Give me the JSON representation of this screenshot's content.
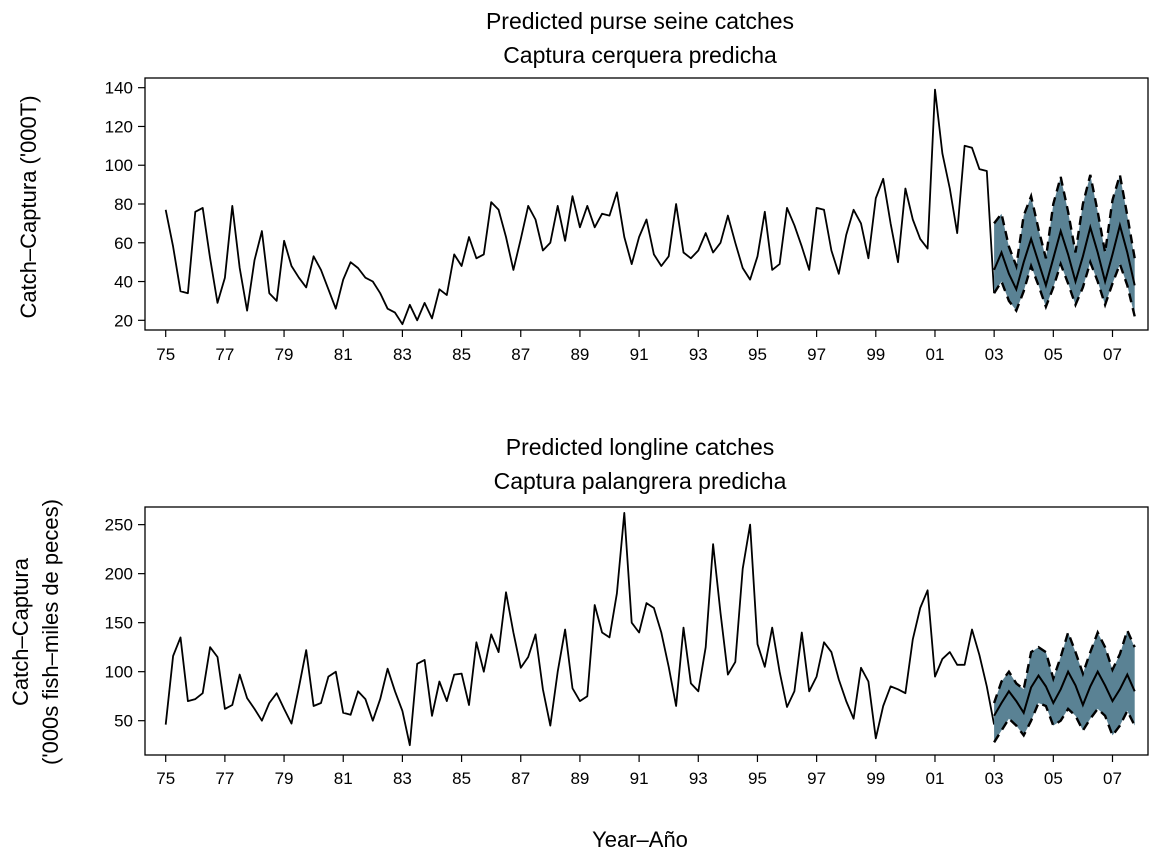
{
  "figure": {
    "xlabel": "Year–Año"
  },
  "chart_data": [
    {
      "type": "line",
      "title": "Predicted purse seine catches",
      "subtitle": "Captura cerquera predicha",
      "ylabel": "Catch–Captura ('000T)",
      "ylabel_line2": "",
      "xlim": [
        1974.3,
        2008.2
      ],
      "ylim": [
        15,
        145
      ],
      "xticks": [
        1975,
        1977,
        1979,
        1981,
        1983,
        1985,
        1987,
        1989,
        1991,
        1993,
        1995,
        1997,
        1999,
        2001,
        2003,
        2005,
        2007
      ],
      "xtick_labels": [
        "75",
        "77",
        "79",
        "81",
        "83",
        "85",
        "87",
        "89",
        "91",
        "93",
        "95",
        "97",
        "99",
        "01",
        "03",
        "05",
        "07"
      ],
      "yticks": [
        20,
        40,
        60,
        80,
        100,
        120,
        140
      ],
      "ytick_labels": [
        "20",
        "40",
        "60",
        "80",
        "100",
        "120",
        "140"
      ],
      "grid": false,
      "colors": {
        "line": "#000000",
        "band": "#5a8294",
        "band_edge": "#000000"
      },
      "series": [
        {
          "role": "observed",
          "x": [
            1975.0,
            1975.25,
            1975.5,
            1975.75,
            1976.0,
            1976.25,
            1976.5,
            1976.75,
            1977.0,
            1977.25,
            1977.5,
            1977.75,
            1978.0,
            1978.25,
            1978.5,
            1978.75,
            1979.0,
            1979.25,
            1979.5,
            1979.75,
            1980.0,
            1980.25,
            1980.5,
            1980.75,
            1981.0,
            1981.25,
            1981.5,
            1981.75,
            1982.0,
            1982.25,
            1982.5,
            1982.75,
            1983.0,
            1983.25,
            1983.5,
            1983.75,
            1984.0,
            1984.25,
            1984.5,
            1984.75,
            1985.0,
            1985.25,
            1985.5,
            1985.75,
            1986.0,
            1986.25,
            1986.5,
            1986.75,
            1987.0,
            1987.25,
            1987.5,
            1987.75,
            1988.0,
            1988.25,
            1988.5,
            1988.75,
            1989.0,
            1989.25,
            1989.5,
            1989.75,
            1990.0,
            1990.25,
            1990.5,
            1990.75,
            1991.0,
            1991.25,
            1991.5,
            1991.75,
            1992.0,
            1992.25,
            1992.5,
            1992.75,
            1993.0,
            1993.25,
            1993.5,
            1993.75,
            1994.0,
            1994.25,
            1994.5,
            1994.75,
            1995.0,
            1995.25,
            1995.5,
            1995.75,
            1996.0,
            1996.25,
            1996.5,
            1996.75,
            1997.0,
            1997.25,
            1997.5,
            1997.75,
            1998.0,
            1998.25,
            1998.5,
            1998.75,
            1999.0,
            1999.25,
            1999.5,
            1999.75,
            2000.0,
            2000.25,
            2000.5,
            2000.75,
            2001.0,
            2001.25,
            2001.5,
            2001.75,
            2002.0,
            2002.25,
            2002.5,
            2002.75,
            2003.0
          ],
          "y": [
            77,
            58,
            35,
            34,
            76,
            78,
            52,
            29,
            42,
            79,
            47,
            25,
            51,
            66,
            34,
            30,
            61,
            48,
            42,
            37,
            53,
            46,
            36,
            26,
            41,
            50,
            47,
            42,
            40,
            34,
            26,
            24,
            18,
            28,
            20,
            29,
            21,
            36,
            33,
            54,
            48,
            63,
            52,
            54,
            81,
            77,
            63,
            46,
            62,
            79,
            72,
            56,
            60,
            79,
            61,
            84,
            68,
            79,
            68,
            75,
            74,
            86,
            63,
            49,
            63,
            72,
            54,
            48,
            53,
            80,
            55,
            52,
            56,
            65,
            55,
            60,
            74,
            60,
            47,
            41,
            53,
            76,
            46,
            49,
            78,
            69,
            58,
            46,
            78,
            77,
            56,
            44,
            64,
            77,
            70,
            52,
            83,
            93,
            70,
            50,
            88,
            72,
            62,
            57,
            139,
            106,
            88,
            65,
            110,
            109,
            98,
            97,
            34
          ]
        },
        {
          "role": "forecast",
          "x": [
            2003.0,
            2003.25,
            2003.5,
            2003.75,
            2004.0,
            2004.25,
            2004.5,
            2004.75,
            2005.0,
            2005.25,
            2005.5,
            2005.75,
            2006.0,
            2006.25,
            2006.5,
            2006.75,
            2007.0,
            2007.25,
            2007.5,
            2007.75
          ],
          "y": [
            46,
            55,
            44,
            36,
            50,
            62,
            50,
            38,
            52,
            66,
            54,
            40,
            53,
            68,
            55,
            40,
            54,
            69,
            55,
            38
          ],
          "upper": [
            70,
            75,
            58,
            48,
            74,
            84,
            67,
            52,
            80,
            94,
            76,
            55,
            80,
            95,
            76,
            55,
            82,
            95,
            74,
            52
          ],
          "lower": [
            34,
            40,
            30,
            25,
            35,
            48,
            38,
            27,
            37,
            49,
            39,
            28,
            37,
            50,
            40,
            28,
            39,
            49,
            38,
            22
          ]
        }
      ]
    },
    {
      "type": "line",
      "title": "Predicted longline catches",
      "subtitle": "Captura palangrera predicha",
      "ylabel": "Catch–Captura",
      "ylabel_line2": "('000s fish–miles de peces)",
      "xlim": [
        1974.3,
        2008.2
      ],
      "ylim": [
        15,
        268
      ],
      "xticks": [
        1975,
        1977,
        1979,
        1981,
        1983,
        1985,
        1987,
        1989,
        1991,
        1993,
        1995,
        1997,
        1999,
        2001,
        2003,
        2005,
        2007
      ],
      "xtick_labels": [
        "75",
        "77",
        "79",
        "81",
        "83",
        "85",
        "87",
        "89",
        "91",
        "93",
        "95",
        "97",
        "99",
        "01",
        "03",
        "05",
        "07"
      ],
      "yticks": [
        50,
        100,
        150,
        200,
        250
      ],
      "ytick_labels": [
        "50",
        "100",
        "150",
        "200",
        "250"
      ],
      "grid": false,
      "colors": {
        "line": "#000000",
        "band": "#5a8294",
        "band_edge": "#000000"
      },
      "series": [
        {
          "role": "observed",
          "x": [
            1975.0,
            1975.25,
            1975.5,
            1975.75,
            1976.0,
            1976.25,
            1976.5,
            1976.75,
            1977.0,
            1977.25,
            1977.5,
            1977.75,
            1978.0,
            1978.25,
            1978.5,
            1978.75,
            1979.0,
            1979.25,
            1979.5,
            1979.75,
            1980.0,
            1980.25,
            1980.5,
            1980.75,
            1981.0,
            1981.25,
            1981.5,
            1981.75,
            1982.0,
            1982.25,
            1982.5,
            1982.75,
            1983.0,
            1983.25,
            1983.5,
            1983.75,
            1984.0,
            1984.25,
            1984.5,
            1984.75,
            1985.0,
            1985.25,
            1985.5,
            1985.75,
            1986.0,
            1986.25,
            1986.5,
            1986.75,
            1987.0,
            1987.25,
            1987.5,
            1987.75,
            1988.0,
            1988.25,
            1988.5,
            1988.75,
            1989.0,
            1989.25,
            1989.5,
            1989.75,
            1990.0,
            1990.25,
            1990.5,
            1990.75,
            1991.0,
            1991.25,
            1991.5,
            1991.75,
            1992.0,
            1992.25,
            1992.5,
            1992.75,
            1993.0,
            1993.25,
            1993.5,
            1993.75,
            1994.0,
            1994.25,
            1994.5,
            1994.75,
            1995.0,
            1995.25,
            1995.5,
            1995.75,
            1996.0,
            1996.25,
            1996.5,
            1996.75,
            1997.0,
            1997.25,
            1997.5,
            1997.75,
            1998.0,
            1998.25,
            1998.5,
            1998.75,
            1999.0,
            1999.25,
            1999.5,
            1999.75,
            2000.0,
            2000.25,
            2000.5,
            2000.75,
            2001.0,
            2001.25,
            2001.5,
            2001.75,
            2002.0,
            2002.25,
            2002.5,
            2002.75,
            2003.0
          ],
          "y": [
            46,
            116,
            135,
            70,
            72,
            78,
            125,
            115,
            62,
            66,
            97,
            73,
            62,
            50,
            68,
            78,
            62,
            47,
            84,
            122,
            65,
            68,
            95,
            100,
            58,
            56,
            80,
            72,
            50,
            72,
            103,
            80,
            60,
            25,
            108,
            112,
            55,
            90,
            70,
            97,
            98,
            66,
            130,
            100,
            138,
            120,
            181,
            140,
            104,
            115,
            138,
            82,
            45,
            100,
            143,
            83,
            70,
            75,
            168,
            140,
            135,
            180,
            262,
            150,
            140,
            170,
            165,
            140,
            105,
            65,
            145,
            88,
            80,
            125,
            230,
            160,
            97,
            110,
            205,
            250,
            128,
            105,
            145,
            100,
            64,
            80,
            140,
            80,
            95,
            130,
            120,
            92,
            70,
            52,
            104,
            90,
            32,
            65,
            85,
            82,
            78,
            133,
            165,
            183,
            95,
            113,
            120,
            107,
            107,
            143,
            117,
            85,
            46
          ]
        },
        {
          "role": "forecast",
          "x": [
            2003.0,
            2003.25,
            2003.5,
            2003.75,
            2004.0,
            2004.25,
            2004.5,
            2004.75,
            2005.0,
            2005.25,
            2005.5,
            2005.75,
            2006.0,
            2006.25,
            2006.5,
            2006.75,
            2007.0,
            2007.25,
            2007.5,
            2007.75
          ],
          "y": [
            55,
            68,
            80,
            70,
            58,
            84,
            96,
            85,
            68,
            82,
            100,
            86,
            66,
            85,
            100,
            86,
            70,
            82,
            97,
            80
          ],
          "upper": [
            68,
            90,
            100,
            88,
            82,
            120,
            125,
            120,
            93,
            115,
            140,
            120,
            98,
            120,
            140,
            125,
            102,
            118,
            142,
            125
          ],
          "lower": [
            28,
            40,
            52,
            45,
            35,
            50,
            68,
            65,
            45,
            50,
            62,
            55,
            40,
            52,
            62,
            55,
            35,
            45,
            60,
            45
          ]
        }
      ]
    }
  ]
}
